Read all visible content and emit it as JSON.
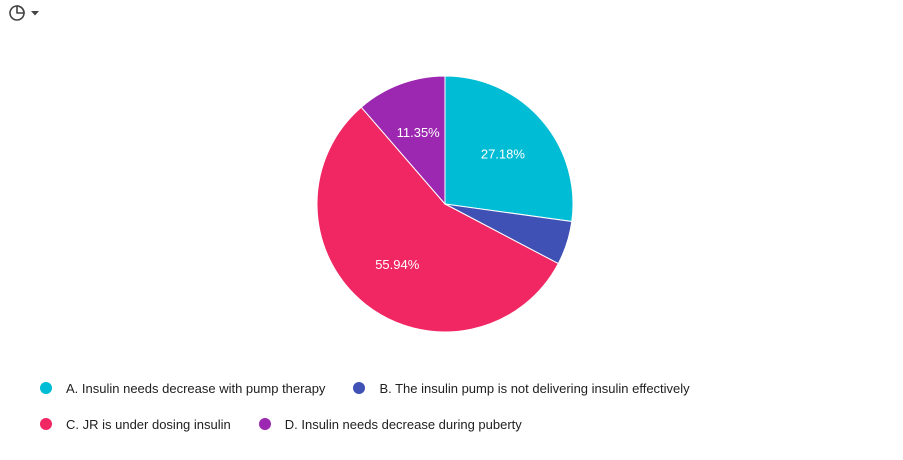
{
  "toolbar": {
    "chart_type_icon": "pie-chart-icon",
    "dropdown_icon": "caret-down-icon"
  },
  "chart_data": {
    "type": "pie",
    "title": "",
    "slices": [
      {
        "label": "A. Insulin needs decrease with pump therapy",
        "value": 27.18,
        "display": "27.18%",
        "color": "#00bcd4"
      },
      {
        "label": "B. The insulin pump is not delivering insulin effectively",
        "value": 5.53,
        "display": "",
        "color": "#3f51b5"
      },
      {
        "label": "C. JR is under dosing insulin",
        "value": 55.94,
        "display": "55.94%",
        "color": "#f12764"
      },
      {
        "label": "D. Insulin needs decrease during puberty",
        "value": 11.35,
        "display": "11.35%",
        "color": "#9c27b0"
      }
    ],
    "legend_position": "bottom",
    "start_angle_deg": 0,
    "direction": "clockwise"
  },
  "legend": {
    "rows": [
      [
        0,
        1
      ],
      [
        2,
        3
      ]
    ]
  }
}
